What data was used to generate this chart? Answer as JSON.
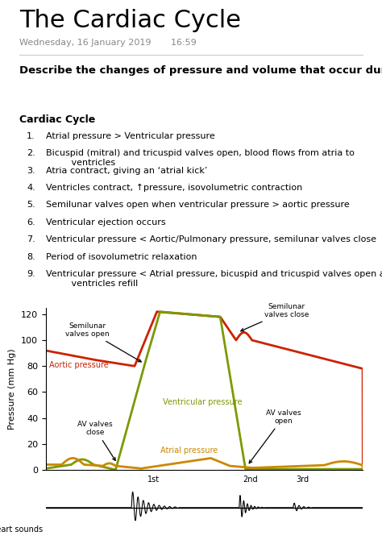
{
  "title": "The Cardiac Cycle",
  "subtitle": "Wednesday, 16 January 2019       16:59",
  "heading": "Describe the changes of pressure and volume that occur during the cardiac cycle",
  "section_title": "Cardiac Cycle",
  "items": [
    "Atrial pressure > Ventricular pressure",
    "Bicuspid (mitral) and tricuspid valves open, blood flows from atria to\n         ventricles",
    "Atria contract, giving an ‘atrial kick’",
    "Ventricles contract, ↑pressure, isovolumetric contraction",
    "Semilunar valves open when ventricular pressure > aortic pressure",
    "Ventricular ejection occurs",
    "Ventricular pressure < Aortic/Pulmonary pressure, semilunar valves close",
    "Period of isovolumetric relaxation",
    "Ventricular pressure < Atrial pressure, bicuspid and tricuspid valves open and\n         ventricles refill"
  ],
  "aortic_color": "#cc2200",
  "ventricular_color": "#7a9a00",
  "atrial_color": "#cc8800",
  "ylabel": "Pressure (mm Hg)",
  "ylim": [
    0,
    125
  ],
  "yticks": [
    0,
    20,
    40,
    60,
    80,
    100,
    120
  ]
}
